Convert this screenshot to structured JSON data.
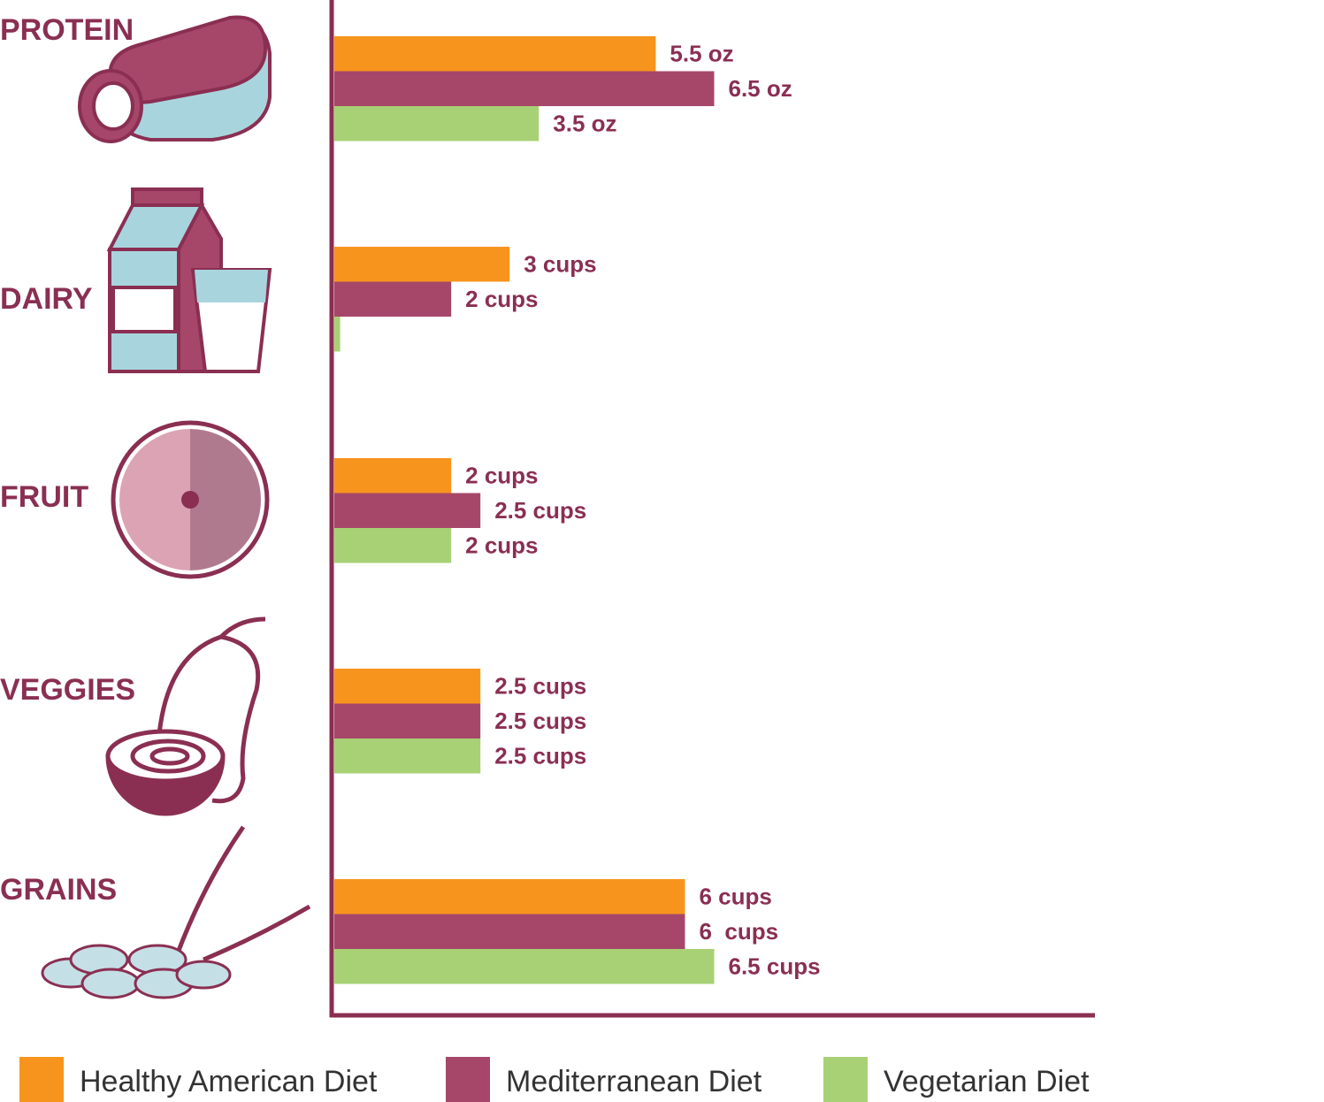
{
  "chart_data": {
    "type": "hbar",
    "categories": [
      "PROTEIN",
      "DAIRY",
      "FRUIT",
      "VEGGIES",
      "GRAINS"
    ],
    "series": [
      {
        "name": "Healthy American Diet",
        "color": "#f7941d",
        "values": [
          5.5,
          3,
          2,
          2.5,
          6
        ],
        "value_labels": [
          "5.5 oz",
          "3 cups",
          "2 cups",
          "2.5 cups",
          "6 cups"
        ]
      },
      {
        "name": "Mediterranean Diet",
        "color": "#a6476a",
        "values": [
          6.5,
          2,
          2.5,
          2.5,
          6
        ],
        "value_labels": [
          "6.5 oz",
          "2 cups",
          "2.5 cups",
          "2.5 cups",
          "6  cups"
        ]
      },
      {
        "name": "Vegetarian Diet",
        "color": "#a8d175",
        "values": [
          3.5,
          0.1,
          2,
          2.5,
          6.5
        ],
        "value_labels": [
          "3.5 oz",
          null,
          "2 cups",
          "2.5 cups",
          "6.5 cups"
        ]
      }
    ],
    "xlim": [
      0,
      13
    ]
  }
}
